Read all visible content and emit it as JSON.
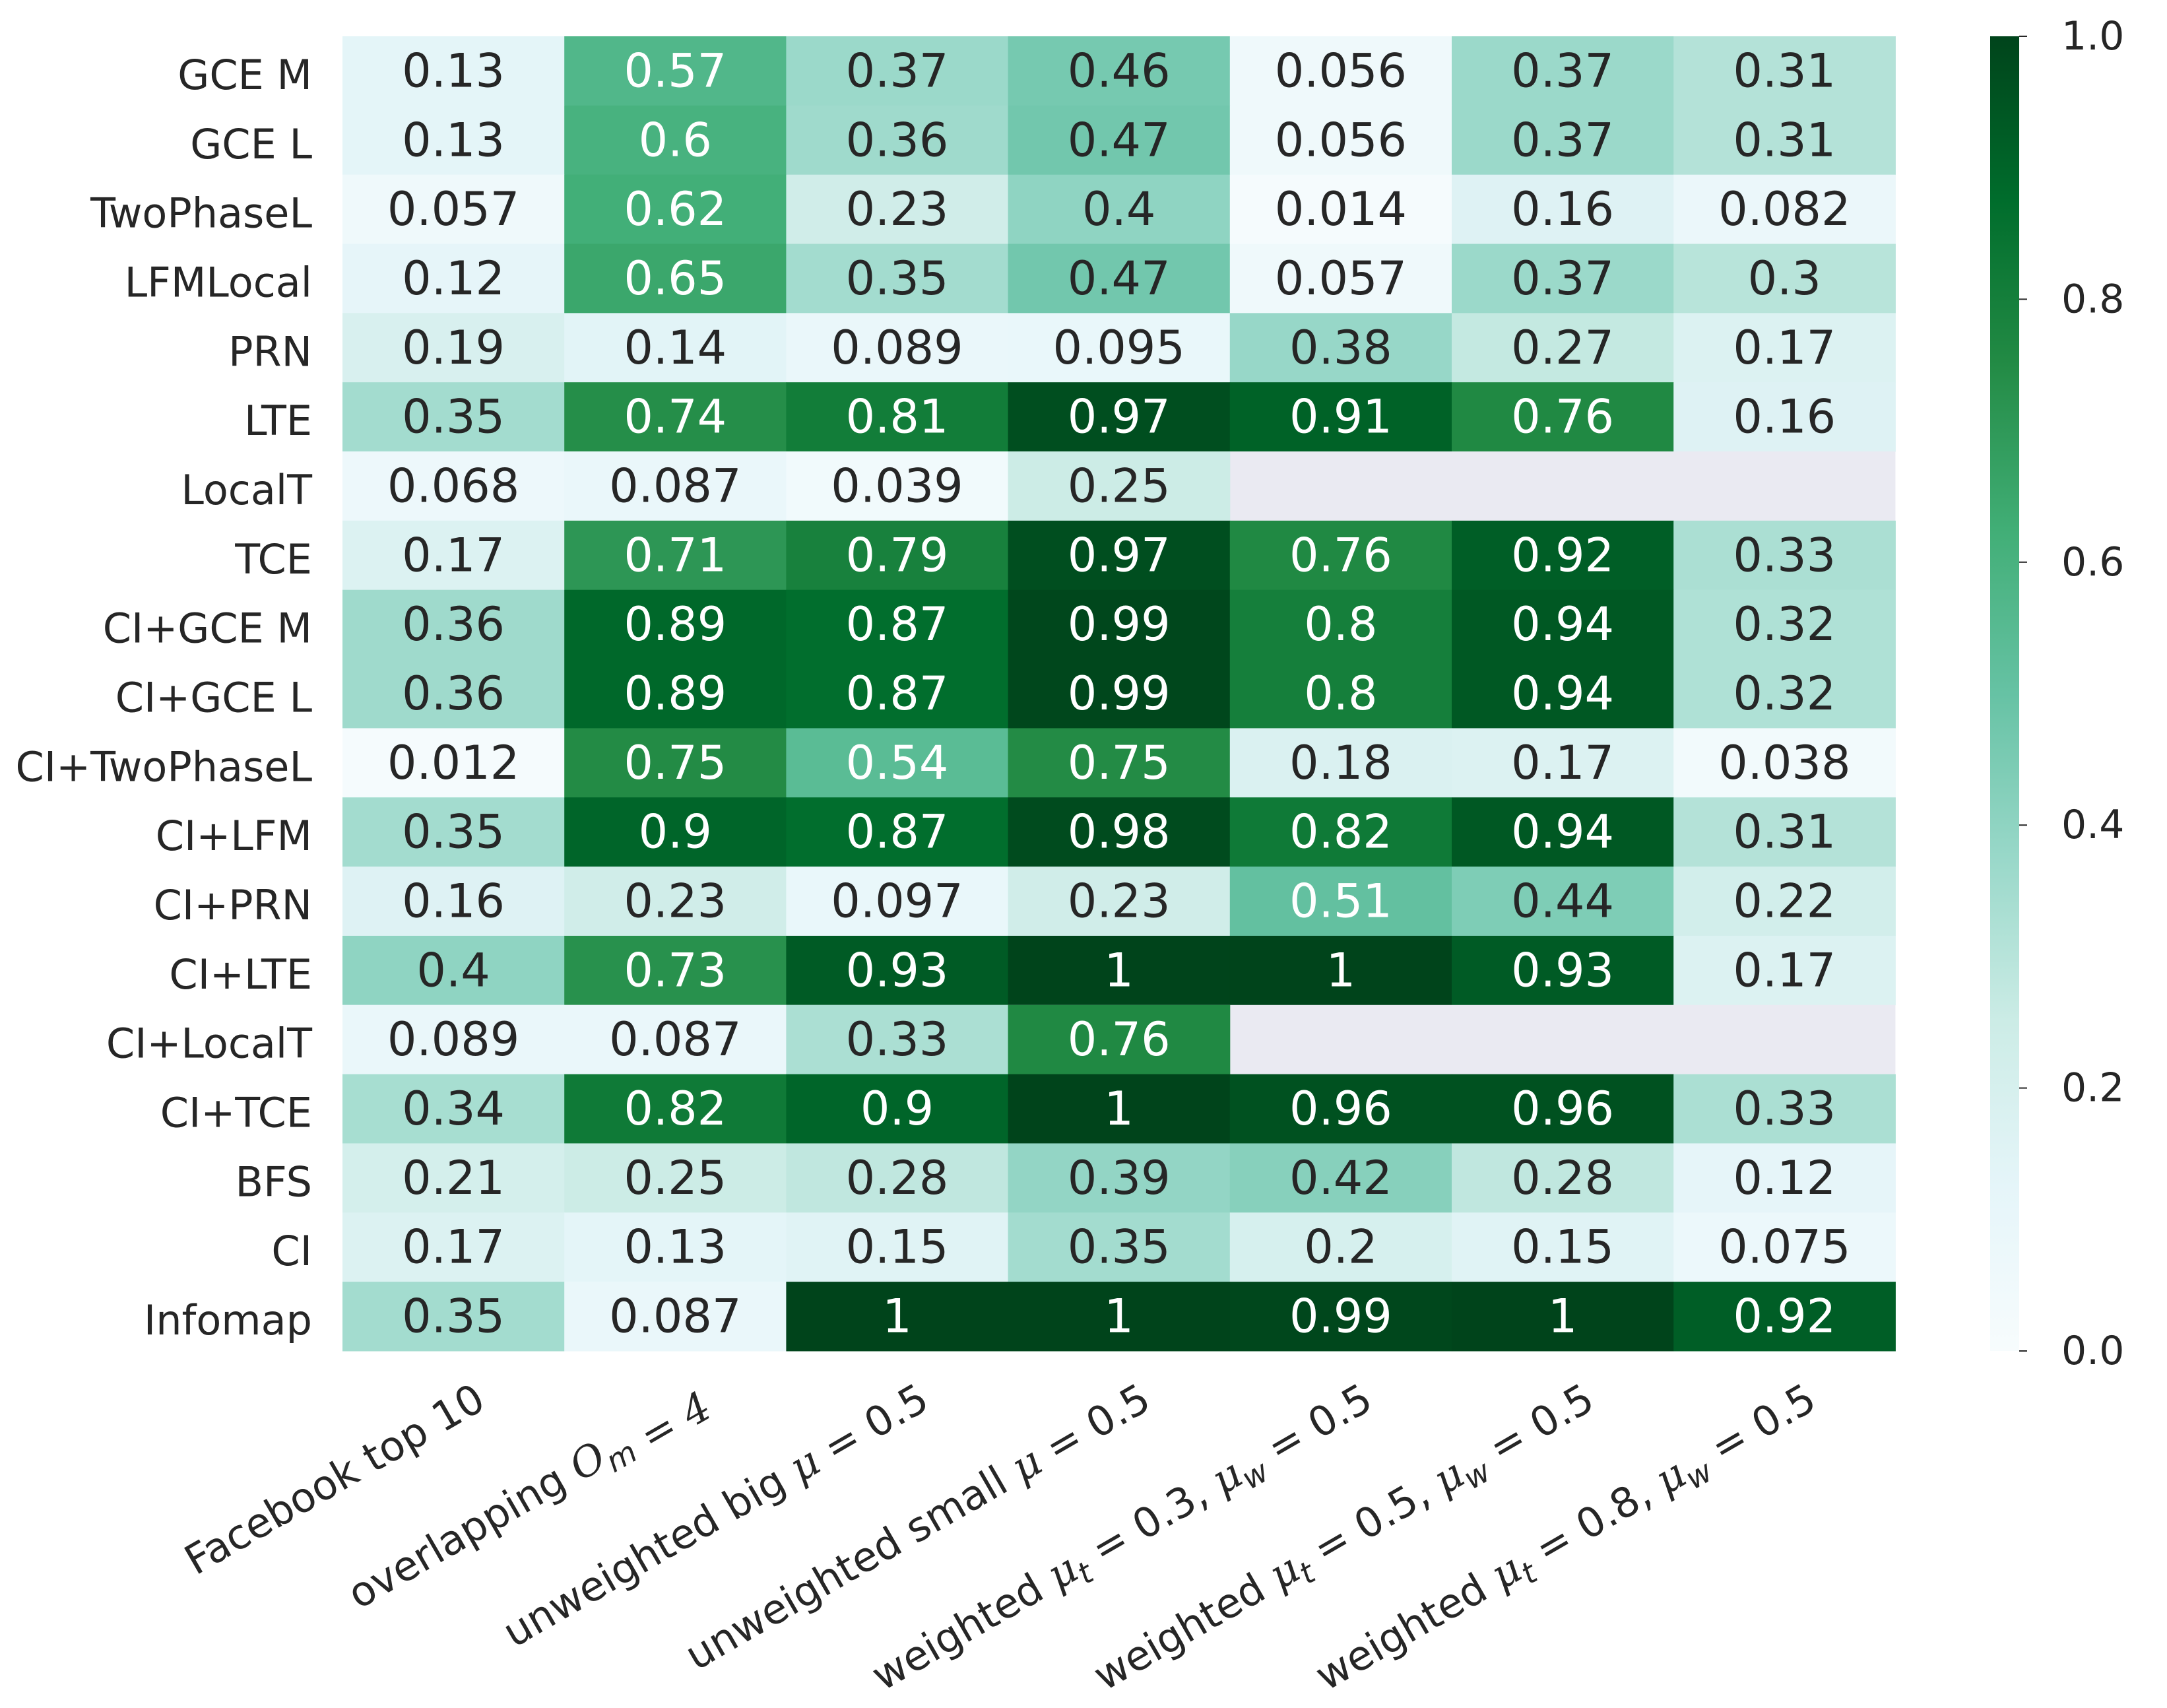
{
  "chart_data": {
    "type": "heatmap",
    "title": "",
    "xlabel": "",
    "ylabel": "",
    "rows": [
      "GCE M",
      "GCE L",
      "TwoPhaseL",
      "LFMLocal",
      "PRN",
      "LTE",
      "LocalT",
      "TCE",
      "CI+GCE M",
      "CI+GCE L",
      "CI+TwoPhaseL",
      "CI+LFM",
      "CI+PRN",
      "CI+LTE",
      "CI+LocalT",
      "CI+TCE",
      "BFS",
      "CI",
      "Infomap"
    ],
    "columns": [
      {
        "pre": "Facebook top 10",
        "math": []
      },
      {
        "pre": "overlapping ",
        "math": [
          [
            "O",
            "m",
            ""
          ],
          [
            " = 4",
            "",
            ""
          ]
        ]
      },
      {
        "pre": "unweighted big ",
        "math": [
          [
            "μ",
            "",
            " = 0.5"
          ]
        ]
      },
      {
        "pre": "unweighted small ",
        "math": [
          [
            "μ",
            "",
            " = 0.5"
          ]
        ]
      },
      {
        "pre": "weighted ",
        "math": [
          [
            "μ",
            "t",
            " = 0.3, "
          ],
          [
            "μ",
            "w",
            " = 0.5"
          ]
        ]
      },
      {
        "pre": "weighted ",
        "math": [
          [
            "μ",
            "t",
            " = 0.5, "
          ],
          [
            "μ",
            "w",
            " = 0.5"
          ]
        ]
      },
      {
        "pre": "weighted ",
        "math": [
          [
            "μ",
            "t",
            " = 0.8, "
          ],
          [
            "μ",
            "w",
            " = 0.5"
          ]
        ]
      }
    ],
    "values": [
      [
        "0.13",
        "0.57",
        "0.37",
        "0.46",
        "0.056",
        "0.37",
        "0.31"
      ],
      [
        "0.13",
        "0.6",
        "0.36",
        "0.47",
        "0.056",
        "0.37",
        "0.31"
      ],
      [
        "0.057",
        "0.62",
        "0.23",
        "0.4",
        "0.014",
        "0.16",
        "0.082"
      ],
      [
        "0.12",
        "0.65",
        "0.35",
        "0.47",
        "0.057",
        "0.37",
        "0.3"
      ],
      [
        "0.19",
        "0.14",
        "0.089",
        "0.095",
        "0.38",
        "0.27",
        "0.17"
      ],
      [
        "0.35",
        "0.74",
        "0.81",
        "0.97",
        "0.91",
        "0.76",
        "0.16"
      ],
      [
        "0.068",
        "0.087",
        "0.039",
        "0.25",
        null,
        null,
        null
      ],
      [
        "0.17",
        "0.71",
        "0.79",
        "0.97",
        "0.76",
        "0.92",
        "0.33"
      ],
      [
        "0.36",
        "0.89",
        "0.87",
        "0.99",
        "0.8",
        "0.94",
        "0.32"
      ],
      [
        "0.36",
        "0.89",
        "0.87",
        "0.99",
        "0.8",
        "0.94",
        "0.32"
      ],
      [
        "0.012",
        "0.75",
        "0.54",
        "0.75",
        "0.18",
        "0.17",
        "0.038"
      ],
      [
        "0.35",
        "0.9",
        "0.87",
        "0.98",
        "0.82",
        "0.94",
        "0.31"
      ],
      [
        "0.16",
        "0.23",
        "0.097",
        "0.23",
        "0.51",
        "0.44",
        "0.22"
      ],
      [
        "0.4",
        "0.73",
        "0.93",
        "1",
        "1",
        "0.93",
        "0.17"
      ],
      [
        "0.089",
        "0.087",
        "0.33",
        "0.76",
        null,
        null,
        null
      ],
      [
        "0.34",
        "0.82",
        "0.9",
        "1",
        "0.96",
        "0.96",
        "0.33"
      ],
      [
        "0.21",
        "0.25",
        "0.28",
        "0.39",
        "0.42",
        "0.28",
        "0.12"
      ],
      [
        "0.17",
        "0.13",
        "0.15",
        "0.35",
        "0.2",
        "0.15",
        "0.075"
      ],
      [
        "0.35",
        "0.087",
        "1",
        "1",
        "0.99",
        "1",
        "0.92"
      ]
    ],
    "colorbar": {
      "range": [
        0,
        1
      ],
      "ticks": [
        "0.0",
        "0.2",
        "0.4",
        "0.6",
        "0.8",
        "1.0"
      ],
      "colormap": [
        "#f7fcfd",
        "#e5f5f9",
        "#ccece6",
        "#99d8c9",
        "#66c2a4",
        "#41ae76",
        "#238b45",
        "#006d2c",
        "#00441b"
      ]
    },
    "missing_color": "#eaeaf2",
    "text_dark": "#262626",
    "text_light": "#ffffff"
  }
}
